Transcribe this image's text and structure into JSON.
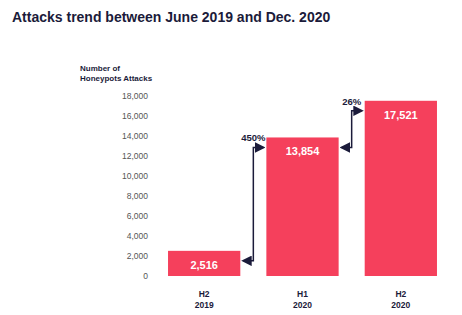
{
  "chart_data": {
    "type": "bar",
    "title": "Attacks trend between June 2019 and Dec. 2020",
    "y_label": [
      "Number of",
      "Honeypots Attacks"
    ],
    "categories": [
      "H2 2019",
      "H1 2020",
      "H2 2020"
    ],
    "values": [
      2516,
      13854,
      17521
    ],
    "value_labels": [
      "2,516",
      "13,854",
      "17,521"
    ],
    "data_labels": true,
    "color": "#f5405c",
    "ylim": [
      0,
      18000
    ],
    "yticks": [
      0,
      {
        "value": 2000,
        "label": "2,000"
      },
      {
        "value": 4000,
        "label": "4,000"
      },
      {
        "value": 6000,
        "label": "6,000"
      },
      {
        "value": 8000,
        "label": "8,000"
      },
      {
        "value": 10000,
        "label": "10,000"
      },
      {
        "value": 12000,
        "label": "12,000"
      },
      {
        "value": 14000,
        "label": "14,000"
      },
      {
        "value": 16000,
        "label": "16,000"
      },
      {
        "value": 18000,
        "label": "18,000"
      }
    ],
    "grid": false,
    "annotations": [
      "450%",
      "26%"
    ]
  }
}
